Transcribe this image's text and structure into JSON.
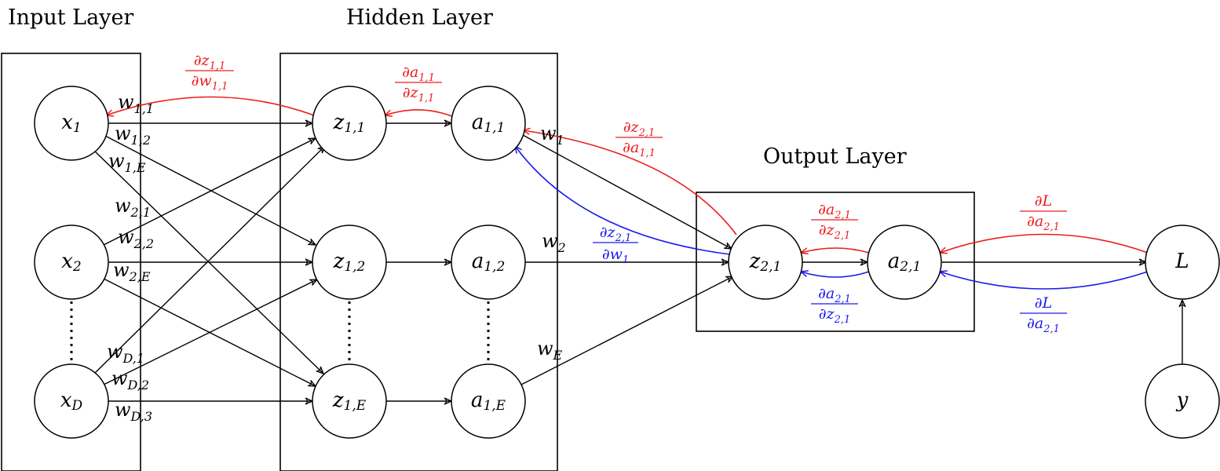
{
  "layers": {
    "input_title": "Input Layer",
    "hidden_title": "Hidden Layer",
    "output_title": "Output Layer"
  },
  "nodes": {
    "x1": {
      "base": "x",
      "sub": "1"
    },
    "x2": {
      "base": "x",
      "sub": "2"
    },
    "xD": {
      "base": "x",
      "sub": "D"
    },
    "z11": {
      "base": "z",
      "sub": "1,1"
    },
    "z12": {
      "base": "z",
      "sub": "1,2"
    },
    "z1E": {
      "base": "z",
      "sub": "1,E"
    },
    "a11": {
      "base": "a",
      "sub": "1,1"
    },
    "a12": {
      "base": "a",
      "sub": "1,2"
    },
    "a1E": {
      "base": "a",
      "sub": "1,E"
    },
    "z21": {
      "base": "z",
      "sub": "2,1"
    },
    "a21": {
      "base": "a",
      "sub": "2,1"
    },
    "L": {
      "base": "L"
    },
    "y": {
      "base": "y"
    }
  },
  "weights": {
    "w11": {
      "base": "w",
      "sub": "1,1"
    },
    "w12": {
      "base": "w",
      "sub": "1,2"
    },
    "w1E": {
      "base": "w",
      "sub": "1,E"
    },
    "w21": {
      "base": "w",
      "sub": "2,1"
    },
    "w22": {
      "base": "w",
      "sub": "2,2"
    },
    "w2E": {
      "base": "w",
      "sub": "2,E"
    },
    "wD1": {
      "base": "w",
      "sub": "D,1"
    },
    "wD2": {
      "base": "w",
      "sub": "D,2"
    },
    "wD3": {
      "base": "w",
      "sub": "D,3"
    },
    "w1": {
      "base": "w",
      "sub": "1"
    },
    "w2": {
      "base": "w",
      "sub": "2"
    },
    "wE": {
      "base": "w",
      "sub": "E"
    }
  },
  "gradients": {
    "dz11_dw11": {
      "num": "∂z",
      "num_sub": "1,1",
      "den": "∂w",
      "den_sub": "1,1",
      "color": "#ee1c1c"
    },
    "da11_dz11": {
      "num": "∂a",
      "num_sub": "1,1",
      "den": "∂z",
      "den_sub": "1,1",
      "color": "#ee1c1c"
    },
    "dz21_da11": {
      "num": "∂z",
      "num_sub": "2,1",
      "den": "∂a",
      "den_sub": "1,1",
      "color": "#ee1c1c"
    },
    "dz21_dw1": {
      "num": "∂z",
      "num_sub": "2,1",
      "den": "∂w",
      "den_sub": "1",
      "color": "#1a1aee"
    },
    "da21_dz21_red": {
      "num": "∂a",
      "num_sub": "2,1",
      "den": "∂z",
      "den_sub": "2,1",
      "color": "#ee1c1c"
    },
    "da21_dz21_blue": {
      "num": "∂a",
      "num_sub": "2,1",
      "den": "∂z",
      "den_sub": "2,1",
      "color": "#1a1aee"
    },
    "dL_da21_red": {
      "num": "∂L",
      "num_sub": "",
      "den": "∂a",
      "den_sub": "2,1",
      "color": "#ee1c1c"
    },
    "dL_da21_blue": {
      "num": "∂L",
      "num_sub": "",
      "den": "∂a",
      "den_sub": "2,1",
      "color": "#1a1aee"
    }
  }
}
